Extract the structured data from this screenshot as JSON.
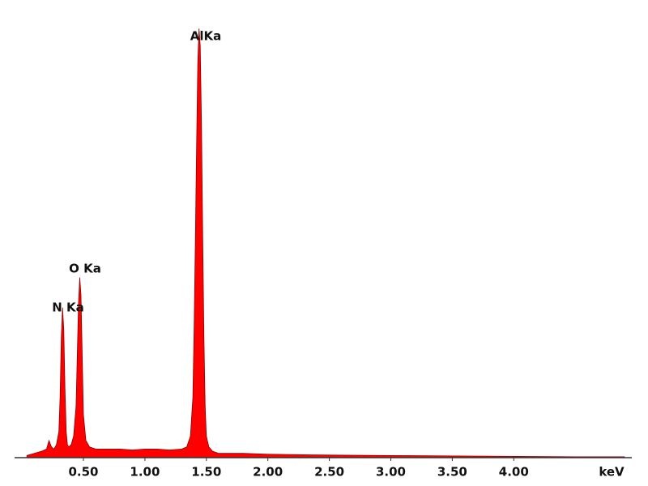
{
  "chart_data": {
    "type": "area",
    "x_label": "keV",
    "annotations": [
      "AlKa",
      "O Ka",
      "N Ka"
    ],
    "color": "#ff0000",
    "x": [
      0.04,
      0.1,
      0.16,
      0.2,
      0.22,
      0.24,
      0.26,
      0.28,
      0.3,
      0.31,
      0.32,
      0.33,
      0.34,
      0.35,
      0.36,
      0.37,
      0.38,
      0.4,
      0.42,
      0.44,
      0.45,
      0.46,
      0.47,
      0.48,
      0.49,
      0.5,
      0.52,
      0.55,
      0.6,
      0.7,
      0.8,
      0.9,
      1.0,
      1.1,
      1.2,
      1.3,
      1.34,
      1.37,
      1.39,
      1.4,
      1.41,
      1.42,
      1.43,
      1.44,
      1.45,
      1.46,
      1.47,
      1.48,
      1.49,
      1.5,
      1.52,
      1.55,
      1.6,
      1.8,
      2.0,
      2.5,
      3.0,
      3.5,
      4.0,
      4.5,
      4.9
    ],
    "values": [
      0.5,
      1,
      1.5,
      2,
      4,
      2.5,
      2,
      3,
      6,
      14,
      28,
      35,
      30,
      16,
      6,
      3,
      2.5,
      3,
      5,
      12,
      24,
      36,
      42,
      38,
      24,
      10,
      4,
      2.5,
      2,
      2,
      2,
      1.8,
      2,
      2,
      1.8,
      2,
      2.5,
      5,
      14,
      30,
      50,
      72,
      92,
      100,
      96,
      78,
      52,
      28,
      12,
      5,
      2.5,
      1.5,
      1,
      1,
      0.8,
      0.6,
      0.5,
      0.4,
      0.3,
      0.2,
      0.2
    ],
    "xlim": [
      -0.06,
      4.96
    ],
    "ylim": [
      0,
      101
    ],
    "xticks": [
      {
        "value": 0.5,
        "label": "0.50"
      },
      {
        "value": 1.0,
        "label": "1.00"
      },
      {
        "value": 1.5,
        "label": "1.50"
      },
      {
        "value": 2.0,
        "label": "2.00"
      },
      {
        "value": 2.5,
        "label": "2.50"
      },
      {
        "value": 3.0,
        "label": "3.00"
      },
      {
        "value": 3.5,
        "label": "3.50"
      },
      {
        "value": 4.0,
        "label": "4.00"
      }
    ]
  }
}
